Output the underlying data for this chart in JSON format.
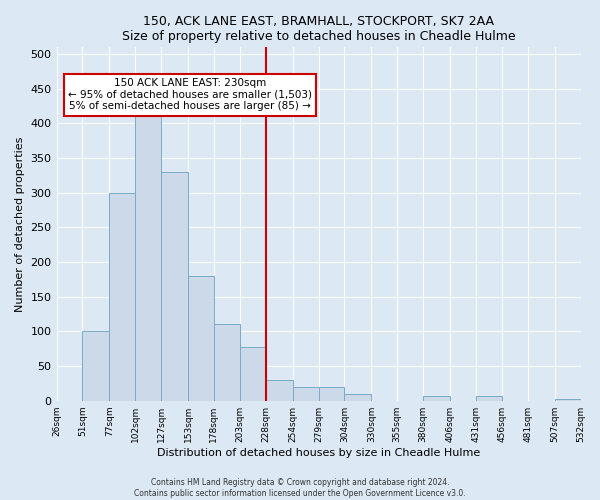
{
  "title": "150, ACK LANE EAST, BRAMHALL, STOCKPORT, SK7 2AA",
  "subtitle": "Size of property relative to detached houses in Cheadle Hulme",
  "xlabel": "Distribution of detached houses by size in Cheadle Hulme",
  "ylabel": "Number of detached properties",
  "bin_edges": [
    26,
    51,
    77,
    102,
    127,
    153,
    178,
    203,
    228,
    254,
    279,
    304,
    330,
    355,
    380,
    406,
    431,
    456,
    481,
    507,
    532
  ],
  "bin_labels": [
    "26sqm",
    "51sqm",
    "77sqm",
    "102sqm",
    "127sqm",
    "153sqm",
    "178sqm",
    "203sqm",
    "228sqm",
    "254sqm",
    "279sqm",
    "304sqm",
    "330sqm",
    "355sqm",
    "380sqm",
    "406sqm",
    "431sqm",
    "456sqm",
    "481sqm",
    "507sqm",
    "532sqm"
  ],
  "counts": [
    0,
    100,
    300,
    410,
    330,
    180,
    110,
    77,
    30,
    20,
    20,
    10,
    0,
    0,
    7,
    0,
    7,
    0,
    0,
    3
  ],
  "bar_color": "#ccd9e8",
  "bar_edge_color": "#7aaac8",
  "marker_value": 228,
  "marker_color": "#cc0000",
  "annotation_title": "150 ACK LANE EAST: 230sqm",
  "annotation_line1": "← 95% of detached houses are smaller (1,503)",
  "annotation_line2": "5% of semi-detached houses are larger (85) →",
  "annotation_box_edge": "#cc0000",
  "ylim": [
    0,
    510
  ],
  "yticks": [
    0,
    50,
    100,
    150,
    200,
    250,
    300,
    350,
    400,
    450,
    500
  ],
  "footer1": "Contains HM Land Registry data © Crown copyright and database right 2024.",
  "footer2": "Contains public sector information licensed under the Open Government Licence v3.0.",
  "background_color": "#dce8f4",
  "plot_background": "#dce8f4"
}
